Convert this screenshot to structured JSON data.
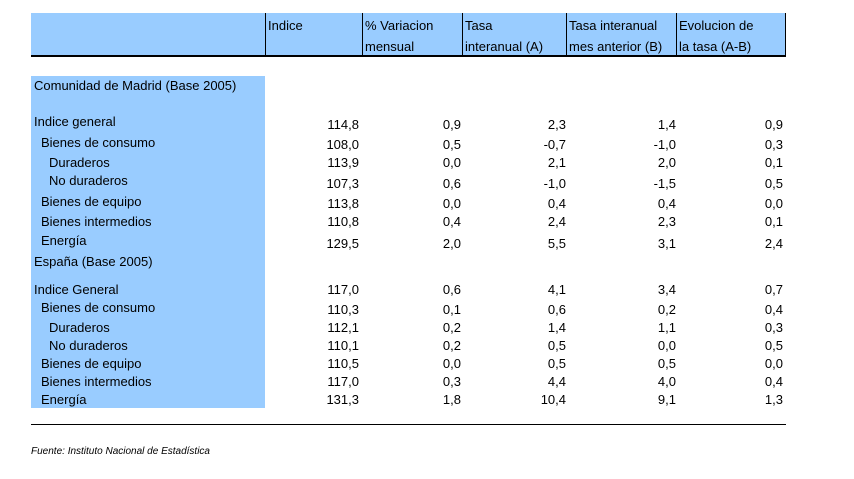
{
  "headers": [
    {
      "line1": "Indice",
      "line2": ""
    },
    {
      "line1": "% Variacion",
      "line2": "mensual"
    },
    {
      "line1": "Tasa",
      "line2": "interanual (A)"
    },
    {
      "line1": "Tasa interanual",
      "line2": "mes anterior (B)"
    },
    {
      "line1": "Evolucion de",
      "line2": "la tasa (A-B)"
    }
  ],
  "sections": [
    {
      "title": "Comunidad de Madrid (Base 2005)",
      "rows": [
        {
          "label": "Indice general",
          "values": [
            "114,8",
            "0,9",
            "2,3",
            "1,4",
            "0,9"
          ]
        },
        {
          "label": "Bienes de consumo",
          "values": [
            "108,0",
            "0,5",
            "-0,7",
            "-1,0",
            "0,3"
          ]
        },
        {
          "label": "Duraderos",
          "values": [
            "113,9",
            "0,0",
            "2,1",
            "2,0",
            "0,1"
          ]
        },
        {
          "label": "No duraderos",
          "values": [
            "107,3",
            "0,6",
            "-1,0",
            "-1,5",
            "0,5"
          ]
        },
        {
          "label": "Bienes de equipo",
          "values": [
            "113,8",
            "0,0",
            "0,4",
            "0,4",
            "0,0"
          ]
        },
        {
          "label": "Bienes intermedios",
          "values": [
            "110,8",
            "0,4",
            "2,4",
            "2,3",
            "0,1"
          ]
        },
        {
          "label": "Energía",
          "values": [
            "129,5",
            "2,0",
            "5,5",
            "3,1",
            "2,4"
          ]
        }
      ]
    },
    {
      "title": "España (Base 2005)",
      "rows": [
        {
          "label": "Indice General",
          "values": [
            "117,0",
            "0,6",
            "4,1",
            "3,4",
            "0,7"
          ]
        },
        {
          "label": "Bienes de consumo",
          "values": [
            "110,3",
            "0,1",
            "0,6",
            "0,2",
            "0,4"
          ]
        },
        {
          "label": "Duraderos",
          "values": [
            "112,1",
            "0,2",
            "1,4",
            "1,1",
            "0,3"
          ]
        },
        {
          "label": "No duraderos",
          "values": [
            "110,1",
            "0,2",
            "0,5",
            "0,0",
            "0,5"
          ]
        },
        {
          "label": "Bienes de equipo",
          "values": [
            "110,5",
            "0,0",
            "0,5",
            "0,5",
            "0,0"
          ]
        },
        {
          "label": "Bienes intermedios",
          "values": [
            "117,0",
            "0,3",
            "4,4",
            "4,0",
            "0,4"
          ]
        },
        {
          "label": "Energía",
          "values": [
            "131,3",
            "1,8",
            "10,4",
            "9,1",
            "1,3"
          ]
        }
      ]
    }
  ],
  "footnote": "Fuente: Instituto Nacional de Estadística"
}
